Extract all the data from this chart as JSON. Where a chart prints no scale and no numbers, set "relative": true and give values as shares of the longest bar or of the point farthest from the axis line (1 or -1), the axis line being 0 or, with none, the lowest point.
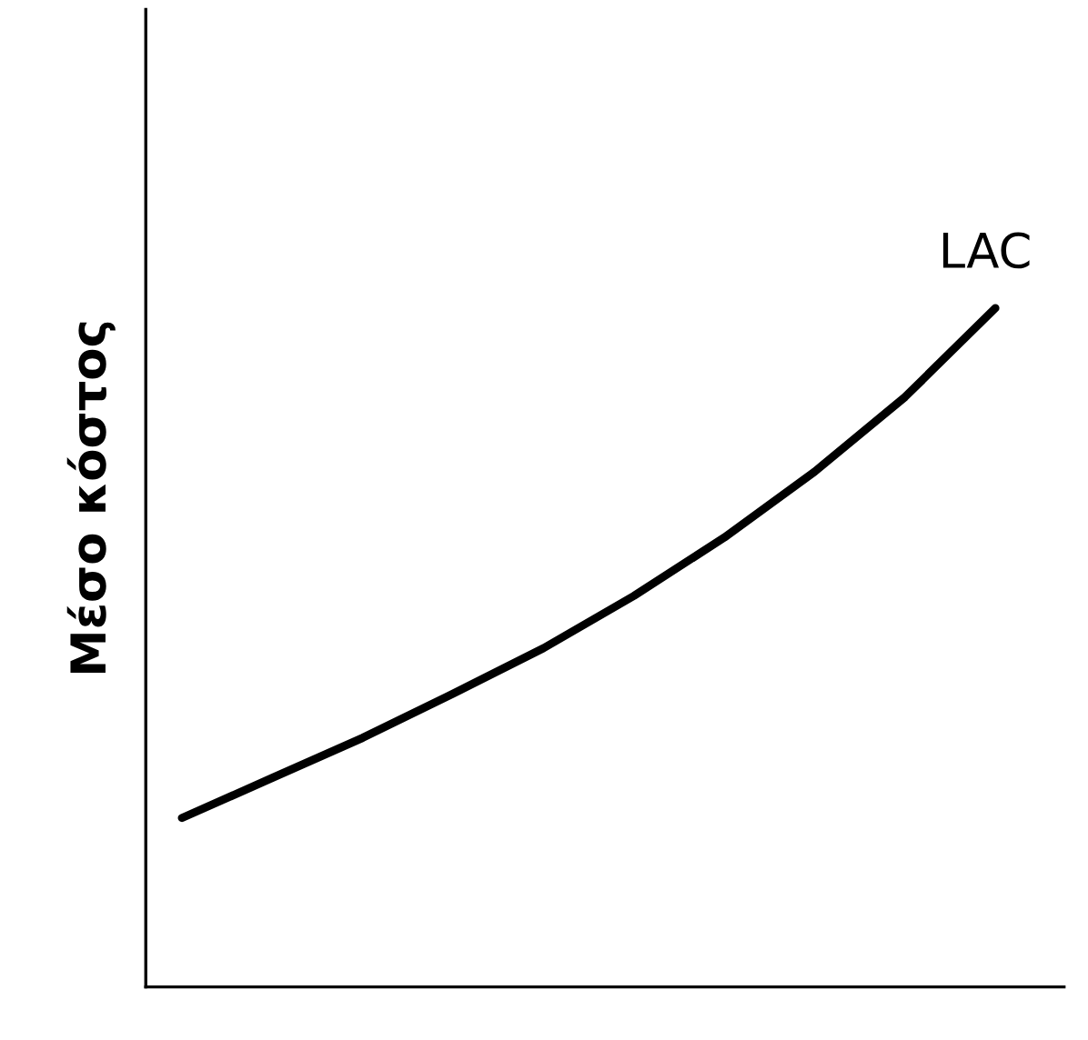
{
  "chart_data": {
    "type": "line",
    "relative": true,
    "ylabel": "Μέσο κόστος",
    "categories": [
      null,
      null,
      null,
      null,
      null,
      null,
      null,
      null,
      null,
      null
    ],
    "series": [
      {
        "name": "LAC",
        "color": "#000000",
        "values": [
          0.249,
          0.308,
          0.367,
          0.432,
          0.499,
          0.576,
          0.662,
          0.759,
          0.869,
          1.0
        ]
      }
    ],
    "grid": false,
    "legend": false,
    "marker": "none",
    "line_style": "solid"
  }
}
